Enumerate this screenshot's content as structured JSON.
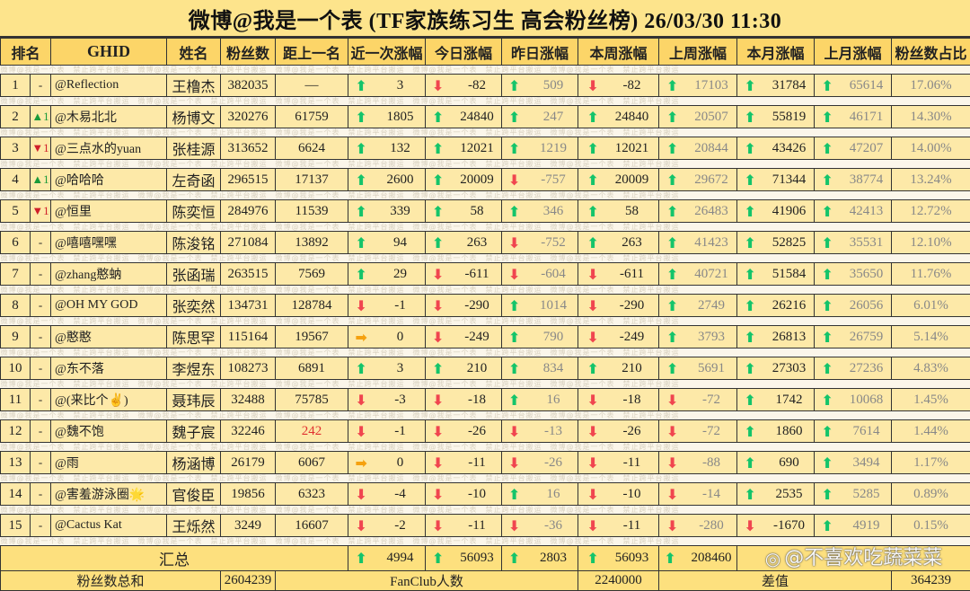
{
  "title": "微博@我是一个表 (TF家族练习生 高会粉丝榜)  26/03/30 11:30",
  "watermark_strip": "微博@我是一个表　禁止跨平台搬运　微博@我是一个表　禁止跨平台搬运　微博@我是一个表　禁止跨平台搬运　微博@我是一个表　禁止跨平台搬运　微博@我是一个表　禁止跨平台搬运",
  "headers": [
    "排名",
    "GHID",
    "姓名",
    "粉丝数",
    "距上一名",
    "近一次涨幅",
    "今日涨幅",
    "昨日涨幅",
    "本周涨幅",
    "上周涨幅",
    "本月涨幅",
    "上月涨幅",
    "粉丝数占比"
  ],
  "colors": {
    "up": "#14c46a",
    "down": "#f0454f",
    "flat": "#f5a10f",
    "cell_bg": "#fde9a8",
    "header_bg": "#fcd568"
  },
  "rows": [
    {
      "rank": "1",
      "change": "-",
      "ghid": "@Reflection",
      "name": "王橹杰",
      "fans": "382035",
      "gap": "—",
      "recent": "3",
      "today": "-82",
      "yesterday": "509",
      "week": "-82",
      "last_week": "17103",
      "month": "31784",
      "last_month": "65614",
      "pct": "17.06%"
    },
    {
      "rank": "2",
      "change": "▲1",
      "ghid": "@木易北北",
      "name": "杨博文",
      "fans": "320276",
      "gap": "61759",
      "recent": "1805",
      "today": "24840",
      "yesterday": "247",
      "week": "24840",
      "last_week": "20507",
      "month": "55819",
      "last_month": "46171",
      "pct": "14.30%"
    },
    {
      "rank": "3",
      "change": "▼1",
      "ghid": "@三点水的yuan",
      "name": "张桂源",
      "fans": "313652",
      "gap": "6624",
      "recent": "132",
      "today": "12021",
      "yesterday": "1219",
      "week": "12021",
      "last_week": "20844",
      "month": "43426",
      "last_month": "47207",
      "pct": "14.00%"
    },
    {
      "rank": "4",
      "change": "▲1",
      "ghid": "@哈哈哈",
      "name": "左奇函",
      "fans": "296515",
      "gap": "17137",
      "recent": "2600",
      "today": "20009",
      "yesterday": "-757",
      "week": "20009",
      "last_week": "29672",
      "month": "71344",
      "last_month": "38774",
      "pct": "13.24%"
    },
    {
      "rank": "5",
      "change": "▼1",
      "ghid": "@恒里",
      "name": "陈奕恒",
      "fans": "284976",
      "gap": "11539",
      "recent": "339",
      "today": "58",
      "yesterday": "346",
      "week": "58",
      "last_week": "26483",
      "month": "41906",
      "last_month": "42413",
      "pct": "12.72%"
    },
    {
      "rank": "6",
      "change": "-",
      "ghid": "@嘻嘻嘿嘿",
      "name": "陈浚铭",
      "fans": "271084",
      "gap": "13892",
      "recent": "94",
      "today": "263",
      "yesterday": "-752",
      "week": "263",
      "last_week": "41423",
      "month": "52825",
      "last_month": "35531",
      "pct": "12.10%"
    },
    {
      "rank": "7",
      "change": "-",
      "ghid": "@zhang憨蚋",
      "name": "张函瑞",
      "fans": "263515",
      "gap": "7569",
      "recent": "29",
      "today": "-611",
      "yesterday": "-604",
      "week": "-611",
      "last_week": "40721",
      "month": "51584",
      "last_month": "35650",
      "pct": "11.76%"
    },
    {
      "rank": "8",
      "change": "-",
      "ghid": "@OH MY GOD",
      "name": "张奕然",
      "fans": "134731",
      "gap": "128784",
      "recent": "-1",
      "today": "-290",
      "yesterday": "1014",
      "week": "-290",
      "last_week": "2749",
      "month": "26216",
      "last_month": "26056",
      "pct": "6.01%"
    },
    {
      "rank": "9",
      "change": "-",
      "ghid": "@憨憨",
      "name": "陈思罕",
      "fans": "115164",
      "gap": "19567",
      "recent": "0",
      "today": "-249",
      "yesterday": "790",
      "week": "-249",
      "last_week": "3793",
      "month": "26813",
      "last_month": "26759",
      "pct": "5.14%"
    },
    {
      "rank": "10",
      "change": "-",
      "ghid": "@东不落",
      "name": "李煜东",
      "fans": "108273",
      "gap": "6891",
      "recent": "3",
      "today": "210",
      "yesterday": "834",
      "week": "210",
      "last_week": "5691",
      "month": "27303",
      "last_month": "27236",
      "pct": "4.83%"
    },
    {
      "rank": "11",
      "change": "-",
      "ghid": "@(来比个✌️)",
      "name": "聂玮辰",
      "fans": "32488",
      "gap": "75785",
      "recent": "-3",
      "today": "-18",
      "yesterday": "16",
      "week": "-18",
      "last_week": "-72",
      "month": "1742",
      "last_month": "10068",
      "pct": "1.45%"
    },
    {
      "rank": "12",
      "change": "-",
      "ghid": "@魏不饱",
      "name": "魏子宸",
      "fans": "32246",
      "gap": "242",
      "gap_red": true,
      "recent": "-1",
      "today": "-26",
      "yesterday": "-13",
      "week": "-26",
      "last_week": "-72",
      "month": "1860",
      "last_month": "7614",
      "pct": "1.44%"
    },
    {
      "rank": "13",
      "change": "-",
      "ghid": "@雨",
      "name": "杨涵博",
      "fans": "26179",
      "gap": "6067",
      "recent": "0",
      "today": "-11",
      "yesterday": "-26",
      "week": "-11",
      "last_week": "-88",
      "month": "690",
      "last_month": "3494",
      "pct": "1.17%"
    },
    {
      "rank": "14",
      "change": "-",
      "ghid": "@害羞游泳圈🌟",
      "name": "官俊臣",
      "fans": "19856",
      "gap": "6323",
      "recent": "-4",
      "today": "-10",
      "yesterday": "16",
      "week": "-10",
      "last_week": "-14",
      "month": "2535",
      "last_month": "5285",
      "pct": "0.89%"
    },
    {
      "rank": "15",
      "change": "-",
      "ghid": "@Cactus Kat",
      "name": "王烁然",
      "fans": "3249",
      "gap": "16607",
      "recent": "-2",
      "today": "-11",
      "yesterday": "-36",
      "week": "-11",
      "last_week": "-280",
      "month": "-1670",
      "last_month": "4919",
      "pct": "0.15%"
    }
  ],
  "summary": {
    "label": "汇总",
    "recent": "4994",
    "today": "56093",
    "yesterday": "2803",
    "week": "56093",
    "last_week": "208460"
  },
  "totals": {
    "fans_label": "粉丝数总和",
    "fans_total": "2604239",
    "fanclub_label": "FanClub人数",
    "fanclub_total": "2240000",
    "diff_label": "差值",
    "diff": "364239"
  },
  "overlay_watermark": "@不喜欢吃蔬菜菜"
}
